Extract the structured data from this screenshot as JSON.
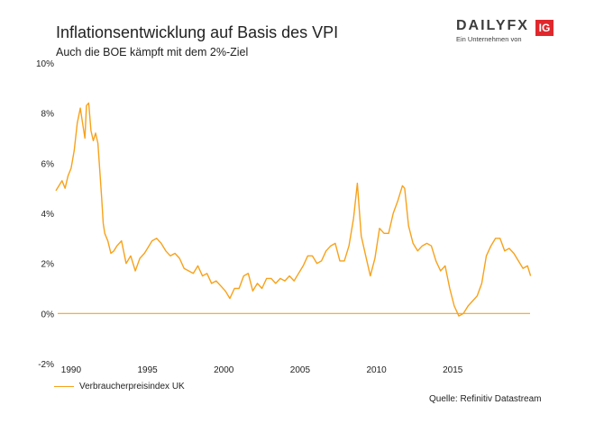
{
  "header": {
    "title": "Inflationsentwicklung auf Basis des VPI",
    "subtitle": "Auch die BOE kämpft mit dem 2%-Ziel"
  },
  "logo": {
    "word": "DAILYFX",
    "badge": "IG",
    "tagline": "Ein Unternehmen von"
  },
  "source": "Quelle: Refinitiv Datastream",
  "colors": {
    "series": "#f7a21b",
    "logo_red": "#e0282c"
  },
  "chart_data": {
    "type": "line",
    "title": "Inflationsentwicklung auf Basis des VPI",
    "subtitle": "Auch die BOE kämpft mit dem 2%-Ziel",
    "xlabel": "",
    "ylabel": "",
    "xlim": [
      1989,
      2020.3
    ],
    "ylim": [
      -2,
      10
    ],
    "y_ticks": [
      "-2%",
      "0%",
      "2%",
      "4%",
      "6%",
      "8%",
      "10%"
    ],
    "y_tick_values": [
      -2,
      0,
      2,
      4,
      6,
      8,
      10
    ],
    "x_ticks": [
      "1990",
      "1995",
      "2000",
      "2005",
      "2010",
      "2015"
    ],
    "x_tick_values": [
      1990,
      1995,
      2000,
      2005,
      2010,
      2015
    ],
    "grid": false,
    "legend": "bottom-left",
    "reference_line": {
      "y": 0
    },
    "series": [
      {
        "name": "Verbraucherpreisindex UK",
        "x": [
          1989.0,
          1989.2,
          1989.4,
          1989.6,
          1989.8,
          1990.0,
          1990.2,
          1990.4,
          1990.6,
          1990.75,
          1990.9,
          1991.0,
          1991.15,
          1991.3,
          1991.45,
          1991.6,
          1991.75,
          1991.9,
          1992.0,
          1992.1,
          1992.2,
          1992.4,
          1992.6,
          1992.8,
          1993.0,
          1993.3,
          1993.6,
          1993.9,
          1994.2,
          1994.5,
          1994.8,
          1995.0,
          1995.3,
          1995.6,
          1995.9,
          1996.2,
          1996.5,
          1996.8,
          1997.1,
          1997.4,
          1997.7,
          1998.0,
          1998.3,
          1998.6,
          1998.9,
          1999.2,
          1999.5,
          1999.8,
          2000.1,
          2000.4,
          2000.7,
          2001.0,
          2001.3,
          2001.6,
          2001.9,
          2002.2,
          2002.5,
          2002.8,
          2003.1,
          2003.4,
          2003.7,
          2004.0,
          2004.3,
          2004.6,
          2004.9,
          2005.2,
          2005.5,
          2005.8,
          2006.1,
          2006.4,
          2006.7,
          2007.0,
          2007.3,
          2007.6,
          2007.9,
          2008.2,
          2008.5,
          2008.75,
          2009.0,
          2009.3,
          2009.6,
          2009.9,
          2010.2,
          2010.5,
          2010.8,
          2011.1,
          2011.4,
          2011.7,
          2011.85,
          2012.1,
          2012.4,
          2012.7,
          2013.0,
          2013.3,
          2013.6,
          2013.9,
          2014.2,
          2014.5,
          2014.8,
          2015.1,
          2015.4,
          2015.7,
          2016.0,
          2016.3,
          2016.6,
          2016.9,
          2017.2,
          2017.5,
          2017.8,
          2018.1,
          2018.4,
          2018.7,
          2019.0,
          2019.3,
          2019.6,
          2019.9,
          2020.1
        ],
        "values": [
          4.9,
          5.1,
          5.3,
          5.0,
          5.5,
          5.8,
          6.5,
          7.6,
          8.2,
          7.6,
          7.0,
          8.3,
          8.4,
          7.3,
          6.9,
          7.2,
          6.8,
          5.5,
          4.6,
          3.6,
          3.2,
          2.9,
          2.4,
          2.5,
          2.7,
          2.9,
          2.0,
          2.3,
          1.7,
          2.2,
          2.4,
          2.6,
          2.9,
          3.0,
          2.8,
          2.5,
          2.3,
          2.4,
          2.2,
          1.8,
          1.7,
          1.6,
          1.9,
          1.5,
          1.6,
          1.2,
          1.3,
          1.1,
          0.9,
          0.6,
          1.0,
          1.0,
          1.5,
          1.6,
          0.9,
          1.2,
          1.0,
          1.4,
          1.4,
          1.2,
          1.4,
          1.3,
          1.5,
          1.3,
          1.6,
          1.9,
          2.3,
          2.3,
          2.0,
          2.1,
          2.5,
          2.7,
          2.8,
          2.1,
          2.1,
          2.7,
          3.8,
          5.2,
          3.1,
          2.3,
          1.5,
          2.2,
          3.4,
          3.2,
          3.2,
          4.0,
          4.5,
          5.1,
          5.0,
          3.5,
          2.8,
          2.5,
          2.7,
          2.8,
          2.7,
          2.1,
          1.7,
          1.9,
          1.0,
          0.3,
          -0.1,
          0.0,
          0.3,
          0.5,
          0.7,
          1.2,
          2.3,
          2.7,
          3.0,
          3.0,
          2.5,
          2.6,
          2.4,
          2.1,
          1.8,
          1.9,
          1.5
        ]
      }
    ]
  }
}
